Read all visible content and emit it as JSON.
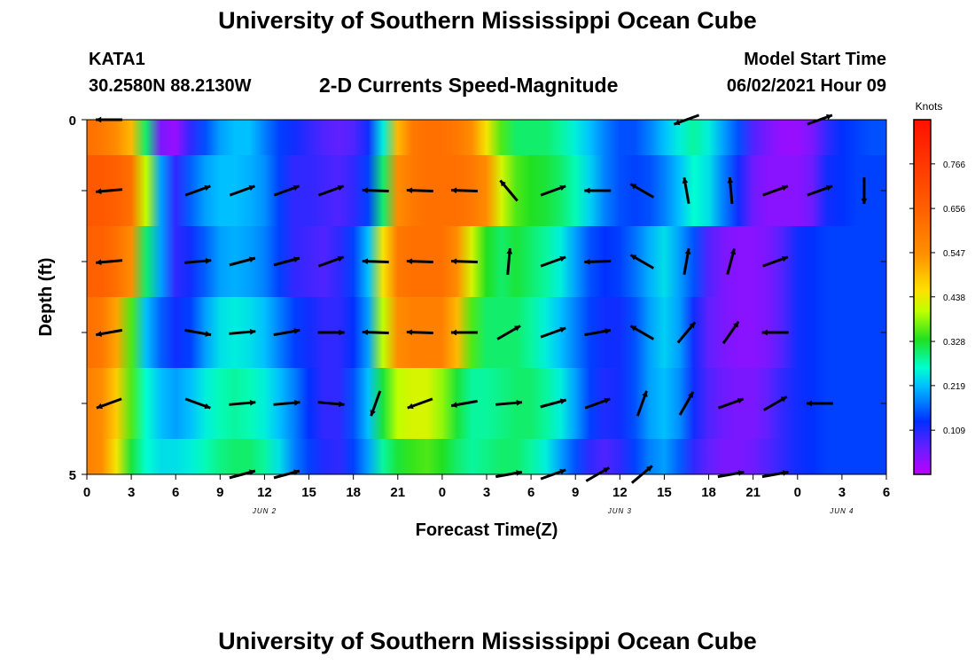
{
  "header": {
    "title_top": "University of Southern Mississippi Ocean Cube",
    "title_bottom": "University of Southern Mississippi Ocean Cube",
    "station": "KATA1",
    "coords": "30.2580N  88.2130W",
    "plot_title": "2-D Currents Speed-Magnitude",
    "start_label": "Model Start Time",
    "start_time": "06/02/2021 Hour 09"
  },
  "chart_data": {
    "type": "heatmap",
    "title": "2-D Currents Speed-Magnitude",
    "xlabel": "Forecast Time(Z)",
    "ylabel": "Depth (ft)",
    "x_tick_labels": [
      "0",
      "3",
      "6",
      "9",
      "12",
      "15",
      "18",
      "21",
      "0",
      "3",
      "6",
      "9",
      "12",
      "15",
      "18",
      "21",
      "0",
      "3",
      "6"
    ],
    "x_range_hours": [
      0,
      54
    ],
    "y_tick_labels": [
      "0",
      "5"
    ],
    "y_range_ft": [
      0,
      5
    ],
    "date_labels": [
      {
        "text": "JUN 2",
        "hour": 12
      },
      {
        "text": "JUN 3",
        "hour": 36
      },
      {
        "text": "JUN 4",
        "hour": 51
      }
    ],
    "colorbar": {
      "label": "Knots",
      "range": [
        0.0,
        0.875
      ],
      "ticks": [
        "0.766",
        "0.656",
        "0.547",
        "0.438",
        "0.328",
        "0.219",
        "0.109"
      ],
      "tick_values": [
        0.766,
        0.656,
        0.547,
        0.438,
        0.328,
        0.219,
        0.109
      ]
    },
    "band_depths_ft": [
      0,
      0.5,
      1.5,
      2.5,
      3.5,
      4.5
    ],
    "speed_columns_hours": [
      0,
      1,
      2,
      3,
      4,
      5,
      6,
      7,
      8,
      9,
      10,
      11,
      12,
      13,
      14,
      15,
      16,
      17,
      18,
      19,
      20,
      21,
      22,
      23,
      24,
      25,
      26,
      27,
      28,
      29,
      30,
      31,
      32,
      33,
      34,
      35,
      36,
      37,
      38,
      39,
      40,
      41,
      42,
      43,
      44,
      45,
      46,
      47,
      48,
      49,
      50,
      51,
      52,
      53,
      54
    ],
    "speed_bands": [
      [
        0.62,
        0.6,
        0.55,
        0.5,
        0.3,
        0.05,
        0.03,
        0.1,
        0.15,
        0.2,
        0.22,
        0.22,
        0.18,
        0.14,
        0.12,
        0.1,
        0.08,
        0.07,
        0.08,
        0.12,
        0.25,
        0.5,
        0.6,
        0.62,
        0.62,
        0.6,
        0.55,
        0.45,
        0.35,
        0.3,
        0.3,
        0.3,
        0.28,
        0.25,
        0.22,
        0.18,
        0.15,
        0.15,
        0.18,
        0.22,
        0.25,
        0.28,
        0.25,
        0.2,
        0.15,
        0.08,
        0.05,
        0.03,
        0.03,
        0.05,
        0.1,
        0.13,
        0.14,
        0.15,
        0.15
      ],
      [
        0.68,
        0.68,
        0.66,
        0.62,
        0.4,
        0.2,
        0.1,
        0.16,
        0.2,
        0.22,
        0.22,
        0.21,
        0.19,
        0.14,
        0.1,
        0.1,
        0.09,
        0.08,
        0.1,
        0.14,
        0.3,
        0.55,
        0.6,
        0.62,
        0.62,
        0.62,
        0.6,
        0.55,
        0.42,
        0.35,
        0.33,
        0.32,
        0.3,
        0.27,
        0.23,
        0.18,
        0.15,
        0.14,
        0.15,
        0.18,
        0.22,
        0.26,
        0.24,
        0.18,
        0.12,
        0.06,
        0.04,
        0.04,
        0.04,
        0.06,
        0.12,
        0.13,
        0.14,
        0.14,
        0.14
      ],
      [
        0.66,
        0.66,
        0.62,
        0.55,
        0.3,
        0.2,
        0.1,
        0.12,
        0.16,
        0.2,
        0.21,
        0.2,
        0.18,
        0.14,
        0.1,
        0.09,
        0.08,
        0.1,
        0.14,
        0.22,
        0.45,
        0.6,
        0.62,
        0.62,
        0.62,
        0.55,
        0.42,
        0.33,
        0.3,
        0.32,
        0.3,
        0.28,
        0.25,
        0.2,
        0.15,
        0.13,
        0.14,
        0.17,
        0.21,
        0.24,
        0.2,
        0.15,
        0.08,
        0.05,
        0.04,
        0.04,
        0.05,
        0.08,
        0.12,
        0.13,
        0.14,
        0.14,
        0.14,
        0.14,
        0.14
      ],
      [
        0.62,
        0.6,
        0.52,
        0.35,
        0.22,
        0.16,
        0.12,
        0.14,
        0.2,
        0.24,
        0.25,
        0.24,
        0.22,
        0.18,
        0.14,
        0.12,
        0.1,
        0.1,
        0.13,
        0.2,
        0.4,
        0.55,
        0.58,
        0.58,
        0.58,
        0.5,
        0.35,
        0.3,
        0.3,
        0.3,
        0.28,
        0.25,
        0.22,
        0.18,
        0.14,
        0.12,
        0.12,
        0.15,
        0.2,
        0.23,
        0.2,
        0.12,
        0.07,
        0.05,
        0.04,
        0.04,
        0.05,
        0.08,
        0.12,
        0.13,
        0.14,
        0.14,
        0.14,
        0.14,
        0.14
      ],
      [
        0.58,
        0.55,
        0.48,
        0.35,
        0.26,
        0.22,
        0.2,
        0.22,
        0.25,
        0.27,
        0.28,
        0.27,
        0.25,
        0.22,
        0.18,
        0.13,
        0.1,
        0.1,
        0.15,
        0.22,
        0.32,
        0.4,
        0.42,
        0.42,
        0.38,
        0.32,
        0.28,
        0.28,
        0.29,
        0.3,
        0.3,
        0.28,
        0.25,
        0.2,
        0.14,
        0.11,
        0.12,
        0.15,
        0.2,
        0.22,
        0.19,
        0.12,
        0.08,
        0.06,
        0.05,
        0.05,
        0.07,
        0.1,
        0.12,
        0.13,
        0.14,
        0.14,
        0.14,
        0.14,
        0.14
      ],
      [
        0.58,
        0.55,
        0.45,
        0.32,
        0.26,
        0.24,
        0.24,
        0.25,
        0.27,
        0.29,
        0.3,
        0.3,
        0.28,
        0.24,
        0.18,
        0.14,
        0.11,
        0.1,
        0.14,
        0.2,
        0.28,
        0.32,
        0.34,
        0.35,
        0.33,
        0.3,
        0.28,
        0.29,
        0.3,
        0.3,
        0.28,
        0.25,
        0.2,
        0.15,
        0.1,
        0.08,
        0.1,
        0.14,
        0.18,
        0.2,
        0.16,
        0.1,
        0.07,
        0.05,
        0.05,
        0.06,
        0.08,
        0.1,
        0.12,
        0.13,
        0.14,
        0.14,
        0.14,
        0.14,
        0.14
      ]
    ],
    "arrow_rows_depth_ft": [
      0.0,
      1.0,
      2.0,
      3.0,
      4.0,
      5.0
    ],
    "arrow_columns_hours": [
      1.5,
      7.5,
      10.5,
      13.5,
      16.5,
      19.5,
      22.5,
      25.5,
      28.5,
      31.5,
      34.5,
      37.5,
      40.5,
      43.5,
      46.5,
      49.5,
      52.5
    ],
    "arrow_directions_deg": [
      [
        180,
        null,
        null,
        null,
        null,
        null,
        null,
        null,
        null,
        null,
        null,
        null,
        200,
        null,
        null,
        20,
        null
      ],
      [
        185,
        20,
        20,
        20,
        20,
        178,
        178,
        178,
        130,
        20,
        180,
        150,
        100,
        95,
        20,
        20,
        270
      ],
      [
        185,
        5,
        15,
        15,
        20,
        178,
        178,
        178,
        85,
        20,
        182,
        150,
        80,
        75,
        20,
        null,
        null
      ],
      [
        190,
        350,
        5,
        10,
        0,
        178,
        178,
        180,
        30,
        20,
        10,
        150,
        50,
        55,
        180,
        null,
        null
      ],
      [
        200,
        340,
        5,
        5,
        355,
        250,
        200,
        190,
        5,
        15,
        20,
        70,
        60,
        20,
        30,
        180,
        null
      ],
      [
        null,
        null,
        15,
        15,
        null,
        null,
        null,
        null,
        10,
        20,
        30,
        40,
        null,
        10,
        10,
        null,
        null
      ]
    ]
  }
}
